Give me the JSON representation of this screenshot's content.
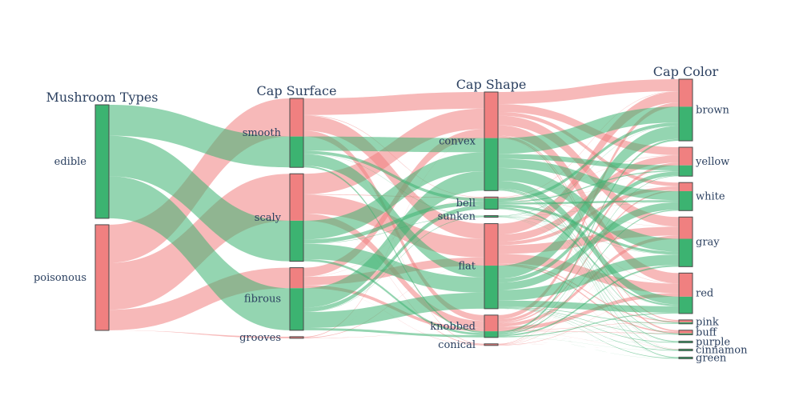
{
  "chart_data": {
    "type": "parallel_categories",
    "title": "",
    "colors": {
      "edible": "#3cb371",
      "poisonous": "#f08080",
      "edge": "#4a4a4a"
    },
    "dimensions": [
      {
        "name": "Mushroom Types",
        "categories": [
          {
            "label": "edible",
            "edible": 4208,
            "poisonous": 0
          },
          {
            "label": "poisonous",
            "edible": 0,
            "poisonous": 3916
          }
        ]
      },
      {
        "name": "Cap Surface",
        "categories": [
          {
            "label": "smooth",
            "edible": 1144,
            "poisonous": 1412
          },
          {
            "label": "scaly",
            "edible": 1504,
            "poisonous": 1740
          },
          {
            "label": "fibrous",
            "edible": 1560,
            "poisonous": 760
          },
          {
            "label": "grooves",
            "edible": 0,
            "poisonous": 4
          }
        ]
      },
      {
        "name": "Cap Shape",
        "categories": [
          {
            "label": "convex",
            "edible": 1948,
            "poisonous": 1708
          },
          {
            "label": "bell",
            "edible": 404,
            "poisonous": 48
          },
          {
            "label": "sunken",
            "edible": 32,
            "poisonous": 0
          },
          {
            "label": "flat",
            "edible": 1596,
            "poisonous": 1556
          },
          {
            "label": "knobbed",
            "edible": 228,
            "poisonous": 600
          },
          {
            "label": "conical",
            "edible": 0,
            "poisonous": 4
          }
        ]
      },
      {
        "name": "Cap Color",
        "categories": [
          {
            "label": "brown",
            "edible": 1264,
            "poisonous": 1020
          },
          {
            "label": "yellow",
            "edible": 400,
            "poisonous": 672
          },
          {
            "label": "white",
            "edible": 720,
            "poisonous": 320
          },
          {
            "label": "gray",
            "edible": 1032,
            "poisonous": 808
          },
          {
            "label": "red",
            "edible": 624,
            "poisonous": 876
          },
          {
            "label": "pink",
            "edible": 56,
            "poisonous": 88
          },
          {
            "label": "buff",
            "edible": 48,
            "poisonous": 120
          },
          {
            "label": "purple",
            "edible": 16,
            "poisonous": 0
          },
          {
            "label": "cinnamon",
            "edible": 32,
            "poisonous": 12
          },
          {
            "label": "green",
            "edible": 16,
            "poisonous": 0
          }
        ]
      }
    ]
  }
}
